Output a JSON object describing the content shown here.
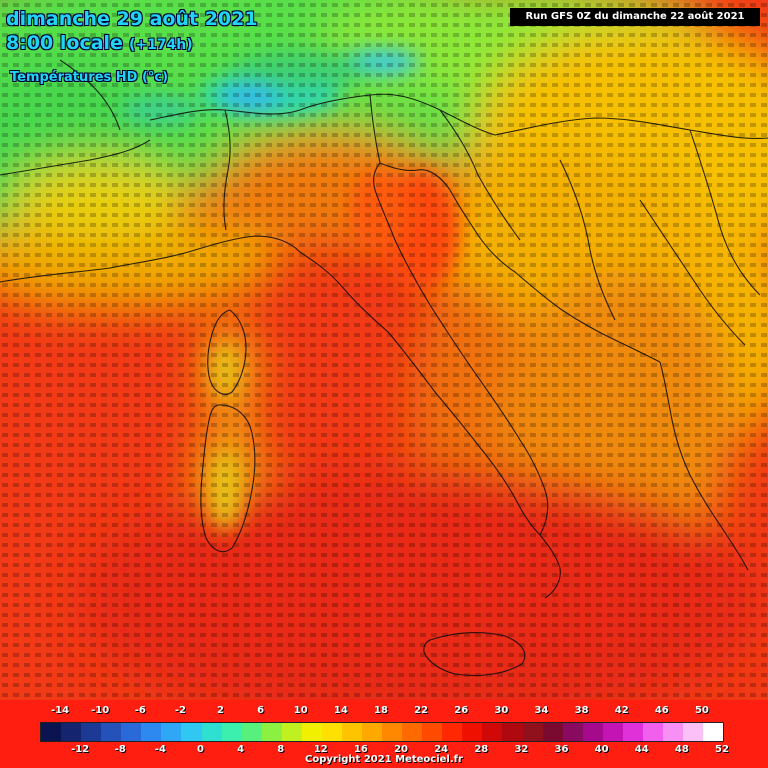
{
  "header": {
    "date": "dimanche 29 août 2021",
    "time": "8:00 locale",
    "offset": "(+174h)",
    "parameter": "Températures HD (°c)"
  },
  "run_info": "Run GFS 0Z du dimanche 22 août 2021",
  "legend": {
    "top_ticks": [
      "-14",
      "-10",
      "-6",
      "-2",
      "2",
      "6",
      "10",
      "14",
      "18",
      "22",
      "26",
      "30",
      "34",
      "38",
      "42",
      "46",
      "50"
    ],
    "bottom_ticks": [
      "-12",
      "-8",
      "-4",
      "0",
      "4",
      "8",
      "12",
      "16",
      "20",
      "24",
      "28",
      "32",
      "36",
      "40",
      "44",
      "48",
      "52"
    ],
    "colors": [
      "#0b1450",
      "#14246e",
      "#1c3a94",
      "#2452b8",
      "#2a6ad8",
      "#2d88f0",
      "#2ea8f4",
      "#30c8f0",
      "#2ee0d0",
      "#3cefae",
      "#58f07c",
      "#8cf040",
      "#c0f020",
      "#f0f000",
      "#ffe000",
      "#ffc400",
      "#ffa800",
      "#ff8800",
      "#ff6a00",
      "#ff4a00",
      "#ff2800",
      "#f01000",
      "#d00808",
      "#b00810",
      "#90101c",
      "#7a0a30",
      "#8a0a60",
      "#a60a8c",
      "#c414b4",
      "#e030d8",
      "#f060ec",
      "#f890f4",
      "#fcc0f8",
      "#ffffff"
    ]
  },
  "copyright": "Copyright 2021 Meteociel.fr"
}
